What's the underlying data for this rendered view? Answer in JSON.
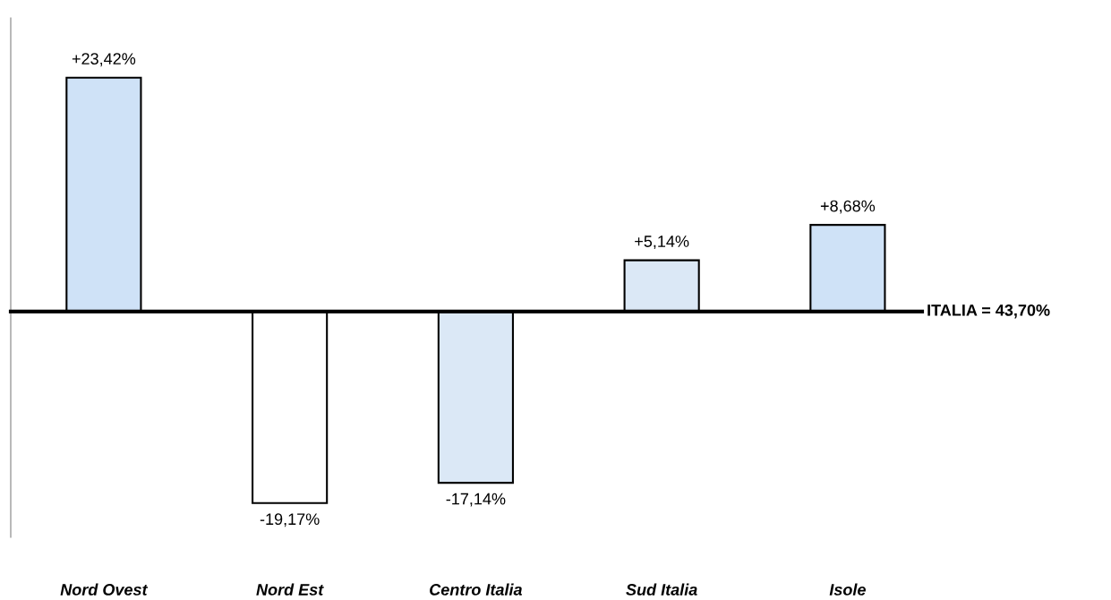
{
  "chart_data": {
    "type": "bar",
    "categories": [
      "Nord Ovest",
      "Nord Est",
      "Centro Italia",
      "Sud Italia",
      "Isole"
    ],
    "values": [
      23.42,
      -19.17,
      -17.14,
      5.14,
      8.68
    ],
    "value_labels": [
      "+23,42%",
      "-19,17%",
      "-17,14%",
      "+5,14%",
      "+8,68%"
    ],
    "colors": [
      "#cfe2f7",
      "#ffffff",
      "#dbe8f6",
      "#dbe8f6",
      "#cfe2f7"
    ],
    "ylim": [
      -22.6,
      29.4
    ],
    "tick_labels": "x",
    "grid": false,
    "annotations": [
      "ITALIA = 43,70%"
    ]
  }
}
